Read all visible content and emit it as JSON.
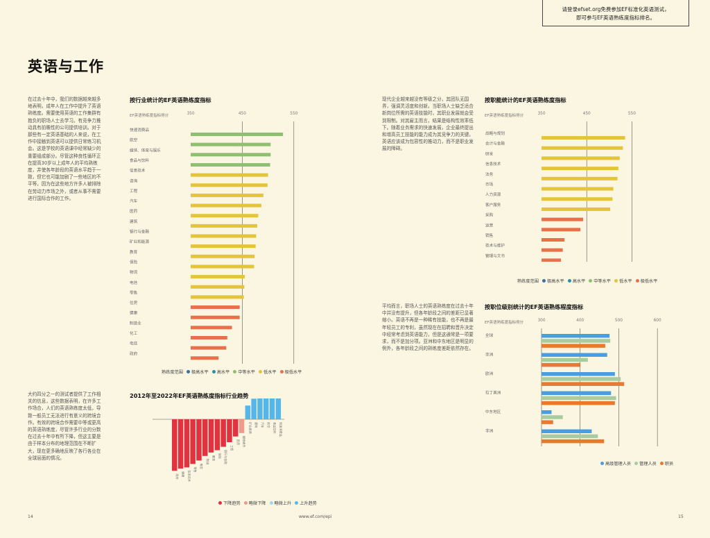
{
  "promo": {
    "line1": "请登录efset.org免费参加EF标准化英语测试，",
    "line2": "即可参与EF英语熟练度指标排名。"
  },
  "page_title": "英语与工作",
  "intro_text": "在过去十年中，我们的数据越来越多地表明，成年人在工作中提升了英语熟练度。需要使用英语的工作集群有抱负的职场人士去学习。有竞争力推动具有前瞻性的公司提供培训。对于那些有一定英语基础的人来说，在工作中接触到英语可以提供日常练习机会。这是学校的英语课中经常缺少的重要组成部分。尽管这种良性循环正在提高30岁以上成年人的平均熟练度，并使各年龄段的英语水平趋于一致，但它也可能加剧了一些地区的不平等，因为在这些地方许多人被排除在劳动力市场之外，或者从事不需要进行国际合作的工作。",
  "lower_left_text": "大约四分之一的测试者提供了工作相关的信息，这些数据表明，在许多工作场合，人们的英语熟练度太低，导致一般员工无法进行有意义的跨境合作。有效的跨境合作需要中等或更高的英语熟练度，尽管许多行业的分数在过去十年中有所下降，但这主要是由于样本分布的地理范围在不断扩大，现在更多确地反映了各行各业在全球层面的情况。",
  "middle_right_text_top": "现代企业越来越没有等级之分，其团队无国界，强调灵活度和创新。当职场人士缺乏适合新岗位所需的英语技能时，其职业发展就会受到限制。对其雇主而言，结果是结构性效率低下。随着业务需求的快速发展，企业最终提出和增高员工技能的能力成为其竞争力的关键。英语应该成为包容性的推动力，而不是职业发展的障碍。",
  "middle_right_text_bottom": "平均而言，职场人士的英语熟练度在过去十年中并没有提升，但各年龄段之间的差距已显著缩小。英语不再是一种稀有技能，也不再是最年轻员工的专利，虽然现在在招聘和晋升决定中经常考虑到英语能力，但是这通常是一项要求，而不是加分项。亚洲和中东地区是明显的例外，各年龄段之间的熟练度差距依然存在。",
  "footer": {
    "left_page": "14",
    "url": "www.ef.com/epi",
    "right_page": "15"
  },
  "colors": {
    "very_high": "#3a6ea5",
    "high": "#2b8fa8",
    "moderate": "#8fbf70",
    "low": "#e3c43a",
    "very_low": "#e8704a",
    "down": "#e0333f",
    "slight_down": "#f09a8c",
    "slight_up": "#a7d3ee",
    "up": "#57b6e9",
    "exec": "#4a9de0",
    "manager": "#a9cba0",
    "staff": "#e8792f"
  },
  "legend_proficiency": {
    "title": "熟练度范围",
    "items": [
      "极高水平",
      "高水平",
      "中等水平",
      "低水平",
      "极低水平"
    ]
  },
  "chart_data": [
    {
      "type": "bar",
      "orientation": "horizontal",
      "title": "按行业统计的EF英语熟练度指标",
      "axis_label": "EF英语熟练度指标得分",
      "ticks": [
        350,
        450,
        550
      ],
      "xlim": [
        350,
        600
      ],
      "categories": [
        "快速消费品",
        "航空",
        "媒体、体育与娱乐",
        "食品与饮料",
        "信息技术",
        "咨询",
        "工程",
        "汽车",
        "医药",
        "建筑",
        "银行与金融",
        "矿业和能源",
        "教育",
        "保险",
        "物流",
        "电信",
        "零售",
        "住房",
        "健康",
        "制造业",
        "化工",
        "电信",
        "政府"
      ],
      "values": [
        529,
        505,
        505,
        504,
        500,
        499,
        491,
        487,
        481,
        479,
        477,
        476,
        474,
        473,
        455,
        454,
        453,
        445,
        445,
        430,
        421,
        419,
        404
      ],
      "levels": [
        "moderate",
        "moderate",
        "moderate",
        "moderate",
        "low",
        "low",
        "low",
        "low",
        "low",
        "low",
        "low",
        "low",
        "low",
        "low",
        "low",
        "low",
        "low",
        "very_low",
        "very_low",
        "very_low",
        "very_low",
        "very_low",
        "very_low"
      ]
    },
    {
      "type": "bar",
      "orientation": "vertical",
      "title": "2012年至2022年EF英语熟练度指标行业趋势",
      "categories": [
        "政府",
        "健康",
        "信息技术",
        "零售",
        "电信",
        "物流",
        "教育",
        "保险",
        "银行与金融",
        "工程",
        "医药",
        "媒体娱乐",
        "矿业能源",
        "建筑",
        "汽车",
        "航空",
        "食品饮料",
        "快速消费品"
      ],
      "values": [
        -45,
        -43,
        -42,
        -39,
        -36,
        -32,
        -29,
        -27,
        -24,
        -20,
        -15,
        -12,
        12,
        18,
        20,
        22,
        24,
        26
      ],
      "trend": [
        "down",
        "down",
        "down",
        "down",
        "down",
        "down",
        "down",
        "down",
        "down",
        "down",
        "down",
        "slight_down",
        "up",
        "up",
        "up",
        "up",
        "up",
        "up"
      ],
      "legend": [
        "下降趋势",
        "略微下降",
        "略微上升",
        "上升趋势"
      ]
    },
    {
      "type": "bar",
      "orientation": "horizontal",
      "title": "按职能统计的EF英语熟练度指标",
      "axis_label": "EF英语熟练度指标得分",
      "ticks": [
        350,
        450,
        550
      ],
      "xlim": [
        350,
        600
      ],
      "categories": [
        "战略与规划",
        "会计与金融",
        "研发",
        "信息技术",
        "法务",
        "市场",
        "人力资源",
        "客户服务",
        "采购",
        "运营",
        "销售",
        "技术与维护",
        "管理与文书"
      ],
      "values": [
        535,
        530,
        523,
        520,
        518,
        509,
        507,
        502,
        442,
        436,
        401,
        397,
        393
      ],
      "levels": [
        "low",
        "low",
        "low",
        "low",
        "low",
        "low",
        "low",
        "low",
        "very_low",
        "very_low",
        "very_low",
        "very_low",
        "very_low"
      ]
    },
    {
      "type": "bar",
      "orientation": "horizontal",
      "title": "按职位级别统计的EF英语熟练程度指标",
      "axis_label": "EF英语熟练度指标得分",
      "ticks": [
        300,
        400,
        500,
        600
      ],
      "xlim": [
        300,
        650
      ],
      "categories": [
        "全球",
        "亚洲",
        "欧洲",
        "拉丁美洲",
        "中东地区",
        "非洲"
      ],
      "series": [
        {
          "name": "高级管理人员",
          "values": [
            476,
            470,
            490,
            480,
            326,
            430
          ]
        },
        {
          "name": "管理人员",
          "values": [
            478,
            420,
            505,
            493,
            355,
            446
          ]
        },
        {
          "name": "职员",
          "values": [
            465,
            400,
            514,
            490,
            330,
            462
          ]
        }
      ]
    }
  ]
}
